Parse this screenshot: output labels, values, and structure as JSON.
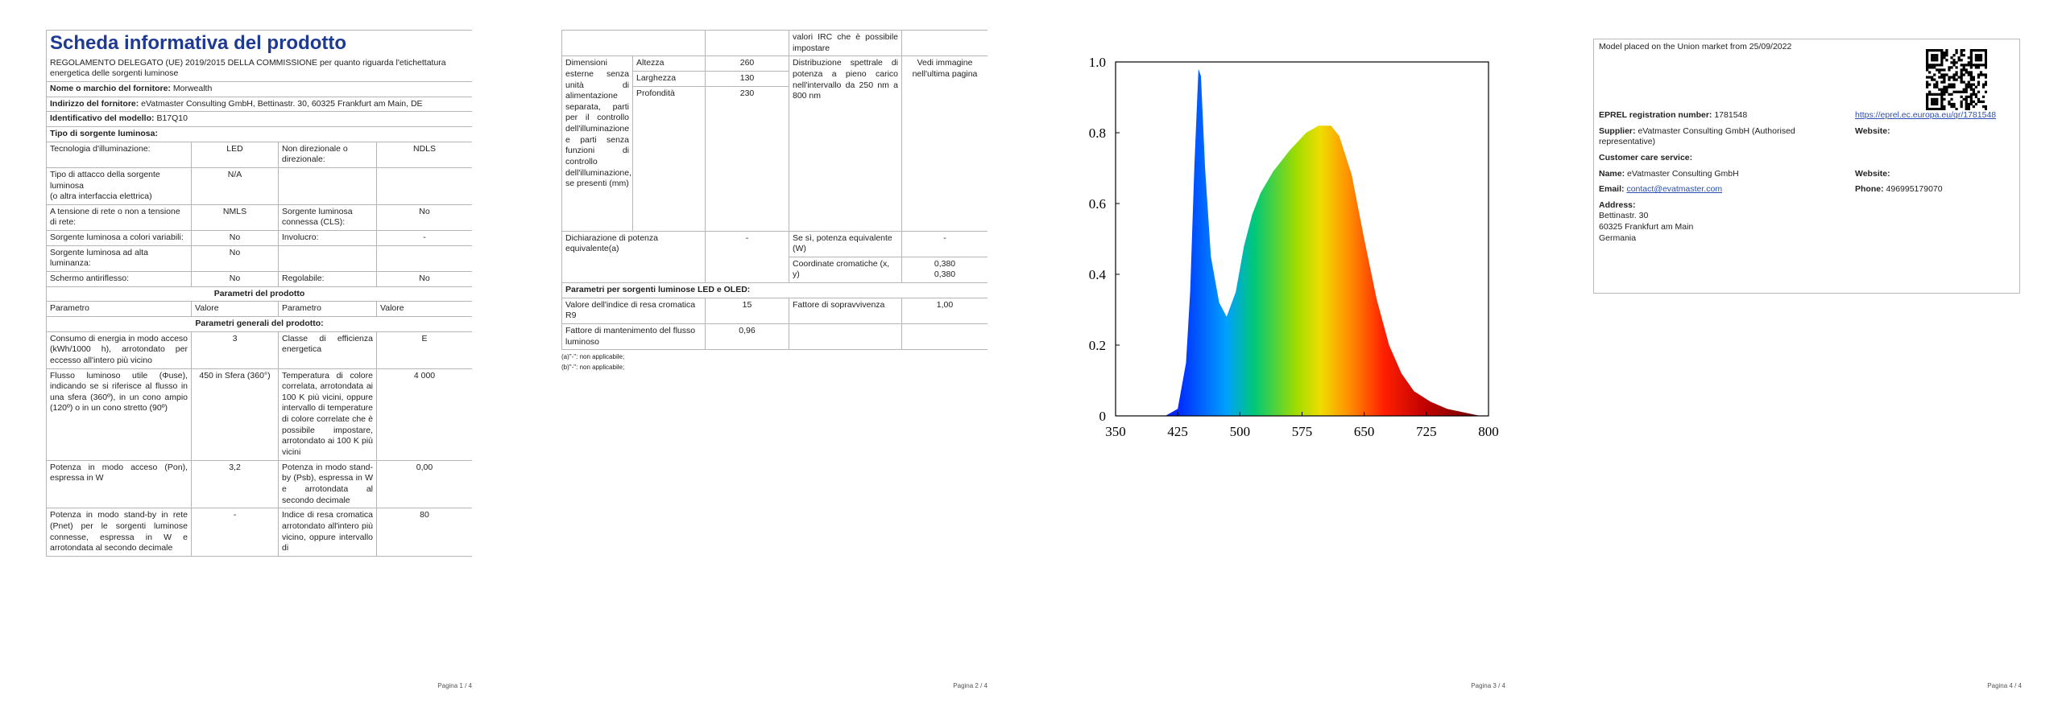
{
  "page1": {
    "title": "Scheda informativa del prodotto",
    "subtitle": "REGOLAMENTO DELEGATO (UE) 2019/2015 DELLA COMMISSIONE per quanto riguarda l'etichettatura energetica delle sorgenti luminose",
    "supplier": {
      "name_label": "Nome o marchio del fornitore:",
      "name": "Morwealth",
      "address_label": "Indirizzo del fornitore:",
      "address": "eVatmaster Consulting GmbH, Bettinastr. 30, 60325 Frankfurt am Main, DE",
      "model_label": "Identificativo del modello:",
      "model": "B17Q10"
    },
    "source_type": "Tipo di sorgente luminosa:",
    "rows1": [
      [
        "Tecnologia d'illuminazione:",
        "LED",
        "Non direzionale o direzionale:",
        "NDLS"
      ],
      [
        "Tipo di attacco della sorgente luminosa\n(o altra interfaccia elettrica)",
        "N/A"
      ],
      [
        "A tensione di rete o non a tensione di rete:",
        "NMLS",
        "Sorgente luminosa connessa (CLS):",
        "No"
      ],
      [
        "Sorgente luminosa a colori variabili:",
        "No",
        "Involucro:",
        "-"
      ],
      [
        "Sorgente luminosa ad alta luminanza:",
        "No"
      ],
      [
        "Schermo antiriflesso:",
        "No",
        "Regolabile:",
        "No"
      ]
    ],
    "params_title": "Parametri del prodotto",
    "param_header": [
      "Parametro",
      "Valore",
      "Parametro",
      "Valore"
    ],
    "general_title": "Parametri generali del prodotto:",
    "rows2": [
      [
        "Consumo di energia in modo acceso (kWh/1000 h), arrotondato per eccesso all'intero più vicino",
        "3",
        "Classe di efficienza energetica",
        "E"
      ],
      [
        "Flusso luminoso utile (Φuse), indicando se si riferisce al flusso in una sfera (360º), in un cono ampio (120º) o in un cono stretto (90º)",
        "450 in Sfera (360°)",
        "Temperatura di colore correlata, arrotondata ai 100 K più vicini, oppure intervallo di temperature di colore correlate che è possibile impostare, arrotondato ai 100 K più vicini",
        "4 000"
      ],
      [
        "Potenza in modo acceso (Pon), espressa in W",
        "3,2",
        "Potenza in modo stand-by (Psb), espressa in W e arrotondata al secondo decimale",
        "0,00"
      ],
      [
        "Potenza in modo stand-by in rete (Pnet) per le sorgenti luminose connesse, espressa in W e arrotondata al secondo decimale",
        "-",
        "Indice di resa cromatica arrotondato all'intero più vicino, oppure intervallo di",
        "80"
      ]
    ]
  },
  "page2": {
    "irc_cont": "valori IRC che è possibile impostare",
    "dim_label": "Dimensioni esterne senza unità di alimentazione separata, parti per il controllo dell'illuminazione e parti senza funzioni di controllo dell'illuminazione, se presenti (mm)",
    "dims": [
      [
        "Altezza",
        "260"
      ],
      [
        "Larghezza",
        "130"
      ],
      [
        "Profondità",
        "230"
      ]
    ],
    "spd_label": "Distribuzione spettrale di potenza a pieno carico nell'intervallo da 250 nm a 800 nm",
    "spd_value": "Vedi immagine nell'ultima pagina",
    "equiv_label": "Dichiarazione di potenza equivalente(a)",
    "equiv_value": "-",
    "equiv_w_label": "Se sì, potenza equivalente (W)",
    "equiv_w_value": "-",
    "chroma_label": "Coordinate cromatiche (x, y)",
    "chroma_value": "0,380\n0,380",
    "led_title": "Parametri per sorgenti luminose LED e OLED:",
    "r9_label": "Valore dell'indice di resa cromatica R9",
    "r9_value": "15",
    "surv_label": "Fattore di sopravvivenza",
    "surv_value": "1,00",
    "maint_label": "Fattore di mantenimento del flusso luminoso",
    "maint_value": "0,96",
    "notes": [
      "(a)\"-\": non applicabile;",
      "(b)\"-\": non applicabile;"
    ]
  },
  "chart_data": {
    "type": "area",
    "x": [
      410,
      425,
      435,
      440,
      445,
      450,
      453,
      458,
      465,
      475,
      484,
      495,
      505,
      515,
      525,
      540,
      560,
      580,
      595,
      610,
      620,
      635,
      650,
      665,
      680,
      695,
      710,
      730,
      750,
      770,
      790
    ],
    "values": [
      0,
      0.02,
      0.15,
      0.35,
      0.7,
      0.98,
      0.96,
      0.7,
      0.45,
      0.32,
      0.28,
      0.35,
      0.48,
      0.57,
      0.63,
      0.69,
      0.75,
      0.8,
      0.82,
      0.82,
      0.79,
      0.68,
      0.5,
      0.33,
      0.2,
      0.12,
      0.07,
      0.04,
      0.02,
      0.01,
      0
    ],
    "xlim": [
      350,
      800
    ],
    "ylim": [
      0,
      1
    ],
    "xticks": [
      350,
      425,
      500,
      575,
      650,
      725,
      800
    ],
    "yticks": [
      0,
      0.2,
      0.4,
      0.6,
      0.8,
      {
        "value": 1,
        "label": "1.0"
      }
    ]
  },
  "page4": {
    "market": "Model placed on the Union market from 25/09/2022",
    "eprel_label": "EPREL registration number:",
    "eprel": "1781548",
    "eprel_link": "https://eprel.ec.europa.eu/qr/1781548",
    "supplier_label": "Supplier:",
    "supplier": "eVatmaster Consulting GmbH (Authorised representative)",
    "website_label": "Website:",
    "care": "Customer care service:",
    "name_label": "Name:",
    "name": "eVatmaster Consulting GmbH",
    "website_label2": "Website:",
    "email_label": "Email:",
    "email": "contact@evatmaster.com",
    "phone_label": "Phone:",
    "phone": "496995179070",
    "address_label": "Address:",
    "address": [
      "Bettinastr. 30",
      "60325 Frankfurt am Main",
      "Germania"
    ]
  },
  "footers": [
    "Pagina 1 / 4",
    "Pagina 2 / 4",
    "Pagina 3 / 4",
    "Pagina 4 / 4"
  ]
}
